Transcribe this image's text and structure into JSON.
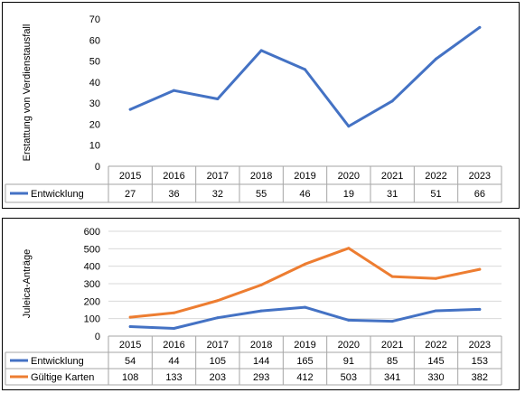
{
  "chart_data": [
    {
      "type": "line",
      "ylabel": "Erstattung von Verdienstausfall",
      "ylim": [
        0,
        70
      ],
      "yticks": [
        0,
        10,
        20,
        30,
        40,
        50,
        60,
        70
      ],
      "grid": false,
      "legend": "data-table",
      "categories": [
        "2015",
        "2016",
        "2017",
        "2018",
        "2019",
        "2020",
        "2021",
        "2022",
        "2023"
      ],
      "series": [
        {
          "name": "Entwicklung",
          "color": "#4472C4",
          "values": [
            27,
            36,
            32,
            55,
            46,
            19,
            31,
            51,
            66
          ]
        }
      ]
    },
    {
      "type": "line",
      "ylabel": "Juleica-Anträge",
      "ylim": [
        0,
        600
      ],
      "yticks": [
        0,
        100,
        200,
        300,
        400,
        500,
        600
      ],
      "grid": true,
      "legend": "data-table",
      "categories": [
        "2015",
        "2016",
        "2017",
        "2018",
        "2019",
        "2020",
        "2021",
        "2022",
        "2023"
      ],
      "series": [
        {
          "name": "Entwicklung",
          "color": "#4472C4",
          "values": [
            54,
            44,
            105,
            144,
            165,
            91,
            85,
            145,
            153
          ]
        },
        {
          "name": "Gültige Karten",
          "color": "#ED7D31",
          "values": [
            108,
            133,
            203,
            293,
            412,
            503,
            341,
            330,
            382
          ]
        }
      ]
    }
  ]
}
